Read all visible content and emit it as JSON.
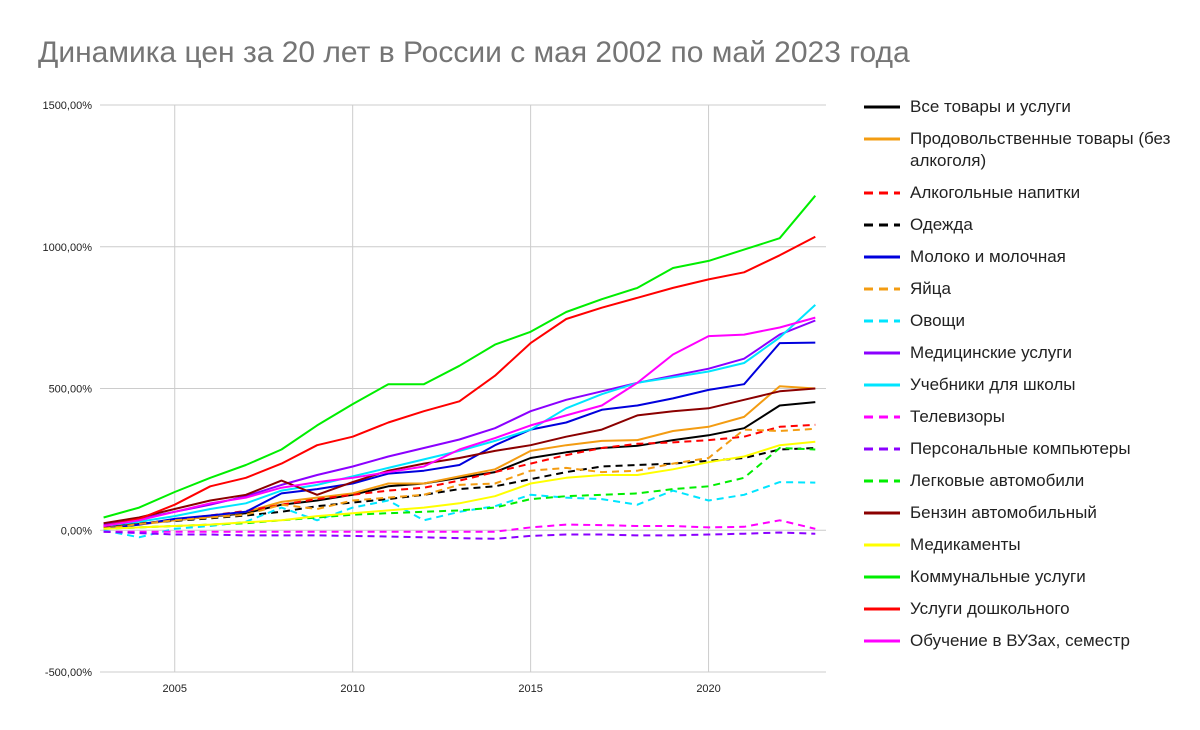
{
  "title": "Динамика цен за 20 лет в России с мая 2002 по май 2023 года",
  "chart_data": {
    "type": "line",
    "title": "Динамика цен за 20 лет в России с мая 2002 по май 2023 года",
    "xlabel": "",
    "ylabel": "",
    "xlim": [
      2002.9,
      2023.3
    ],
    "ylim": [
      -500,
      1500
    ],
    "x_ticks": [
      2005,
      2010,
      2015,
      2020
    ],
    "x_tick_labels": [
      "2005",
      "2010",
      "2015",
      "2020"
    ],
    "y_ticks": [
      -500,
      0,
      500,
      1000,
      1500
    ],
    "y_tick_labels": [
      "-500,00%",
      "0,00%",
      "500,00%",
      "1000,00%",
      "1500,00%"
    ],
    "grid": true,
    "legend_position": "right",
    "x": [
      2003,
      2004,
      2005,
      2006,
      2007,
      2008,
      2009,
      2010,
      2011,
      2012,
      2013,
      2014,
      2015,
      2016,
      2017,
      2018,
      2019,
      2020,
      2021,
      2022,
      2023
    ],
    "series": [
      {
        "name": "Все товары и услуги",
        "color": "#000000",
        "dash": false,
        "values": [
          10,
          22,
          35,
          48,
          60,
          90,
          105,
          125,
          155,
          165,
          185,
          205,
          255,
          275,
          290,
          298,
          318,
          335,
          360,
          440,
          452
        ]
      },
      {
        "name": "Продовольственные товары (без алкоголя)",
        "color": "#f39c12",
        "dash": false,
        "values": [
          8,
          20,
          35,
          48,
          65,
          100,
          115,
          130,
          165,
          165,
          190,
          215,
          280,
          300,
          315,
          318,
          350,
          365,
          400,
          508,
          500
        ]
      },
      {
        "name": "Алкогольные напитки",
        "color": "#ff0000",
        "dash": true,
        "values": [
          10,
          22,
          38,
          52,
          68,
          90,
          110,
          125,
          140,
          150,
          175,
          205,
          235,
          265,
          290,
          305,
          310,
          318,
          330,
          365,
          372
        ]
      },
      {
        "name": "Одежда",
        "color": "#000000",
        "dash": true,
        "values": [
          15,
          25,
          33,
          42,
          52,
          65,
          85,
          98,
          110,
          125,
          145,
          155,
          180,
          205,
          225,
          230,
          235,
          245,
          255,
          285,
          290
        ]
      },
      {
        "name": "Молоко и молочная",
        "color": "#0000dd",
        "dash": false,
        "values": [
          5,
          20,
          40,
          52,
          65,
          130,
          145,
          165,
          200,
          210,
          230,
          300,
          355,
          380,
          425,
          440,
          465,
          495,
          515,
          660,
          662
        ]
      },
      {
        "name": "Яйца",
        "color": "#f39c12",
        "dash": true,
        "values": [
          5,
          22,
          35,
          45,
          55,
          90,
          75,
          105,
          115,
          125,
          160,
          165,
          210,
          220,
          205,
          210,
          235,
          255,
          355,
          350,
          358
        ]
      },
      {
        "name": "Овощи",
        "color": "#00e5ff",
        "dash": true,
        "values": [
          0,
          -25,
          5,
          15,
          30,
          80,
          35,
          80,
          105,
          35,
          65,
          85,
          125,
          115,
          110,
          90,
          140,
          105,
          125,
          170,
          168
        ]
      },
      {
        "name": "Медицинские услуги",
        "color": "#8b00ff",
        "dash": false,
        "values": [
          20,
          40,
          65,
          90,
          120,
          160,
          195,
          225,
          260,
          290,
          320,
          360,
          420,
          460,
          490,
          520,
          545,
          570,
          605,
          690,
          740
        ]
      },
      {
        "name": "Учебники для школы",
        "color": "#00e5ff",
        "dash": false,
        "values": [
          15,
          30,
          50,
          75,
          95,
          140,
          160,
          190,
          220,
          250,
          280,
          315,
          355,
          430,
          480,
          520,
          540,
          560,
          590,
          680,
          795
        ]
      },
      {
        "name": "Телевизоры",
        "color": "#ff00ff",
        "dash": true,
        "values": [
          -5,
          -5,
          -5,
          -5,
          -5,
          -5,
          -5,
          -5,
          -5,
          -5,
          -5,
          -5,
          10,
          20,
          18,
          15,
          15,
          10,
          12,
          35,
          5
        ]
      },
      {
        "name": "Персональные компьютеры",
        "color": "#8b00ff",
        "dash": true,
        "values": [
          -5,
          -10,
          -15,
          -15,
          -18,
          -18,
          -18,
          -20,
          -22,
          -25,
          -28,
          -30,
          -20,
          -15,
          -15,
          -18,
          -18,
          -15,
          -12,
          -8,
          -12
        ]
      },
      {
        "name": "Легковые автомобили",
        "color": "#00ee00",
        "dash": true,
        "values": [
          5,
          10,
          15,
          20,
          25,
          35,
          45,
          55,
          60,
          65,
          70,
          80,
          110,
          120,
          125,
          130,
          145,
          155,
          185,
          290,
          285
        ]
      },
      {
        "name": "Бензин автомобильный",
        "color": "#8b0000",
        "dash": false,
        "values": [
          25,
          45,
          75,
          105,
          125,
          175,
          125,
          170,
          210,
          235,
          255,
          280,
          300,
          330,
          355,
          405,
          420,
          430,
          460,
          490,
          500
        ]
      },
      {
        "name": "Медикаменты",
        "color": "#ffff00",
        "dash": false,
        "values": [
          5,
          10,
          15,
          20,
          28,
          35,
          50,
          60,
          70,
          80,
          95,
          120,
          165,
          185,
          195,
          195,
          215,
          240,
          260,
          300,
          312
        ]
      },
      {
        "name": "Коммунальные услуги",
        "color": "#00ee00",
        "dash": false,
        "values": [
          45,
          80,
          135,
          185,
          230,
          285,
          370,
          445,
          515,
          515,
          580,
          655,
          700,
          770,
          815,
          855,
          925,
          950,
          990,
          1030,
          1180
        ]
      },
      {
        "name": "Услуги дошкольного",
        "color": "#ff0000",
        "dash": false,
        "values": [
          15,
          40,
          90,
          155,
          185,
          235,
          300,
          330,
          380,
          420,
          455,
          545,
          660,
          745,
          785,
          820,
          855,
          885,
          910,
          970,
          1035
        ]
      },
      {
        "name": "Обучение в ВУЗах, семестр",
        "color": "#ff00ff",
        "dash": false,
        "values": [
          15,
          35,
          65,
          95,
          115,
          150,
          170,
          185,
          205,
          225,
          285,
          325,
          370,
          405,
          440,
          520,
          620,
          685,
          690,
          715,
          750
        ]
      }
    ]
  }
}
